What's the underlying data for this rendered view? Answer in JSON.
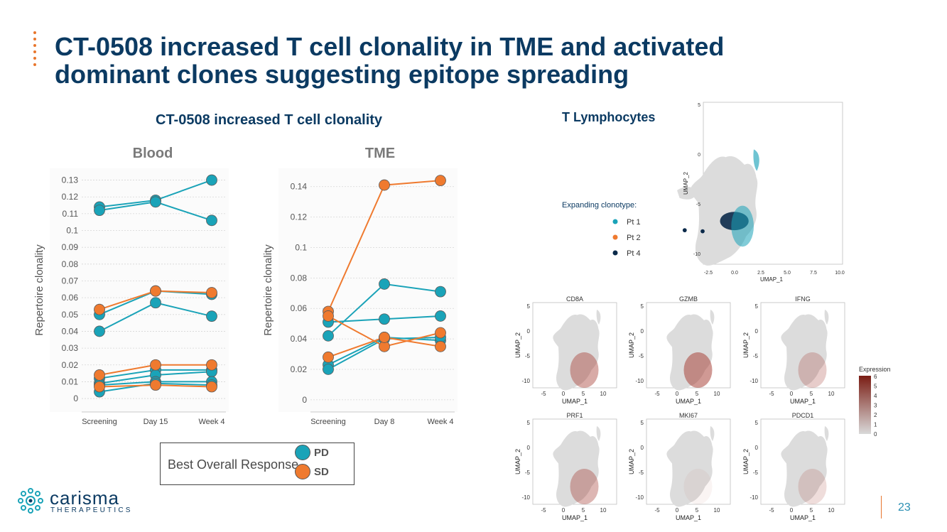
{
  "slide": {
    "title_line1": "CT-0508 increased T cell clonality in TME and activated",
    "title_line2": "dominant clones suggesting epitope spreading",
    "left_section_title": "CT-0508 increased T cell clonality",
    "right_section_title": "T Lymphocytes",
    "page_number": "23"
  },
  "logo": {
    "name": "carisma",
    "sub": "THERAPEUTICS"
  },
  "legend": {
    "title": "Best Overall Response",
    "items": [
      {
        "label": "PD",
        "color": "#1aa3b8"
      },
      {
        "label": "SD",
        "color": "#ef7a2f"
      }
    ]
  },
  "colors": {
    "PD": "#1aa3b8",
    "SD": "#ef7a2f",
    "title": "#0b3a62"
  },
  "chart_data": [
    {
      "type": "line",
      "title": "Blood",
      "ylabel": "Repertoire clonality",
      "xlabel": "",
      "categories": [
        "Screening",
        "Day 15",
        "Week 4"
      ],
      "ylim": [
        -0.008,
        0.137
      ],
      "yticks": [
        "0",
        "0.01",
        "0.02",
        "0.03",
        "0.04",
        "0.05",
        "0.06",
        "0.07",
        "0.08",
        "0.09",
        "0.1",
        "0.11",
        "0.12",
        "0.13"
      ],
      "grid": true,
      "series": [
        {
          "group": "PD",
          "values": [
            0.114,
            0.118,
            0.13
          ]
        },
        {
          "group": "PD",
          "values": [
            0.112,
            0.117,
            0.106
          ]
        },
        {
          "group": "PD",
          "values": [
            0.05,
            0.064,
            0.062
          ]
        },
        {
          "group": "PD",
          "values": [
            0.04,
            0.057,
            0.049
          ]
        },
        {
          "group": "PD",
          "values": [
            0.012,
            0.017,
            0.017
          ]
        },
        {
          "group": "PD",
          "values": [
            0.009,
            0.014,
            0.016
          ]
        },
        {
          "group": "PD",
          "values": [
            0.008,
            0.01,
            0.01
          ]
        },
        {
          "group": "PD",
          "values": [
            0.004,
            0.009,
            0.008
          ]
        },
        {
          "group": "SD",
          "values": [
            0.053,
            0.064,
            0.063
          ]
        },
        {
          "group": "SD",
          "values": [
            0.014,
            0.02,
            0.02
          ]
        },
        {
          "group": "SD",
          "values": [
            0.007,
            0.008,
            0.007
          ]
        }
      ]
    },
    {
      "type": "line",
      "title": "TME",
      "ylabel": "Repertoire clonality",
      "xlabel": "",
      "categories": [
        "Screening",
        "Day 8",
        "Week 4"
      ],
      "ylim": [
        -0.008,
        0.152
      ],
      "yticks": [
        "0",
        "0.02",
        "0.04",
        "0.06",
        "0.08",
        "0.1",
        "0.12",
        "0.14"
      ],
      "grid": true,
      "series": [
        {
          "group": "PD",
          "values": [
            0.051,
            0.053,
            0.055
          ]
        },
        {
          "group": "PD",
          "values": [
            0.042,
            0.076,
            0.071
          ]
        },
        {
          "group": "PD",
          "values": [
            0.023,
            0.041,
            0.039
          ]
        },
        {
          "group": "PD",
          "values": [
            0.02,
            0.04,
            0.041
          ]
        },
        {
          "group": "SD",
          "values": [
            0.058,
            0.141,
            0.144
          ]
        },
        {
          "group": "SD",
          "values": [
            0.055,
            0.035,
            0.044
          ]
        },
        {
          "group": "SD",
          "values": [
            0.028,
            0.041,
            0.035
          ]
        }
      ]
    }
  ],
  "umap": {
    "main": {
      "legend_title": "Expanding clonotype:",
      "legend_items": [
        {
          "label": "Pt 1",
          "color": "#1aa3b8"
        },
        {
          "label": "Pt 2",
          "color": "#ef7a2f"
        },
        {
          "label": "Pt 4",
          "color": "#0b2a4a"
        }
      ],
      "xlabel": "UMAP_1",
      "ylabel": "UMAP_2",
      "xticks": [
        "-2.5",
        "0.0",
        "2.5",
        "5.0",
        "7.5",
        "10.0"
      ],
      "yticks": [
        "5",
        "0",
        "-5",
        "-10"
      ]
    },
    "genes": [
      "CD8A",
      "GZMB",
      "IFNG",
      "PRF1",
      "MKI67",
      "PDCD1"
    ],
    "gene_xticks": [
      "-5",
      "0",
      "5",
      "10"
    ],
    "gene_yticks": [
      "5",
      "0",
      "-5",
      "-10"
    ],
    "xlabel": "UMAP_1",
    "ylabel": "UMAP_2",
    "expression_legend": {
      "title": "Expression",
      "ticks": [
        "6",
        "5",
        "4",
        "3",
        "2",
        "1",
        "0"
      ],
      "low_color": "#d9d9d9",
      "high_color": "#7a1d14"
    }
  }
}
